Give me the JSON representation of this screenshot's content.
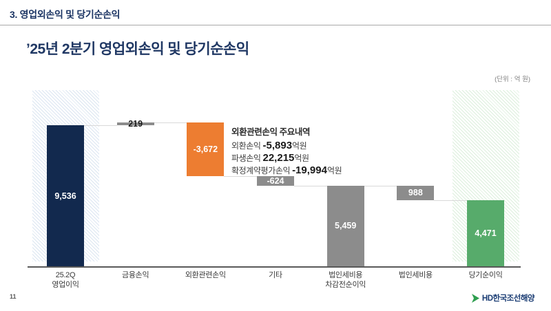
{
  "slide": {
    "header": "3. 영업외손익 및 당기순손익",
    "title": "’25년 2분기 영업외손익 및 당기순손익",
    "unit_label": "(단위 : 억 원)",
    "page_number": "11",
    "logo_text": "HD한국조선해양"
  },
  "annotation": {
    "title": "외환관련손익 주요내역",
    "items": [
      {
        "label": "외환손익",
        "value": "-5,893",
        "suffix": "억원"
      },
      {
        "label": "파생손익",
        "value": "22,215",
        "suffix": "억원"
      },
      {
        "label": "확정계약평가손익",
        "value": "-19,994",
        "suffix": "억원"
      }
    ]
  },
  "chart_data": {
    "type": "bar",
    "subtype": "waterfall",
    "title": "’25년 2분기 영업외손익 및 당기순손익",
    "unit": "억 원",
    "ylim": [
      0,
      10200
    ],
    "grid": false,
    "categories": [
      "25.2Q 영업이익",
      "금융손익",
      "외환관련손익",
      "기타",
      "법인세비용 차감전순이익",
      "법인세비용",
      "당기순이익"
    ],
    "values": [
      9536,
      219,
      -3672,
      -624,
      5459,
      -988,
      4471
    ],
    "columns": [
      {
        "name": "25.2Q-operating-profit",
        "label_lines": [
          "25.2Q",
          "영업이익"
        ],
        "kind": "total",
        "value": 9536,
        "display": "9,536",
        "color": "#12294e",
        "label_color": "#ffffff",
        "band": "blue"
      },
      {
        "name": "financial-income",
        "label_lines": [
          "금융손익"
        ],
        "kind": "delta",
        "value": 219,
        "display": "219",
        "color": "#8c8c8c",
        "label_color": "#1a1a1a",
        "band": null
      },
      {
        "name": "fx-related-income",
        "label_lines": [
          "외환관련손익"
        ],
        "kind": "delta",
        "value": -3672,
        "display": "-3,672",
        "color": "#ed7d31",
        "label_color": "#ffffff",
        "band": null
      },
      {
        "name": "other",
        "label_lines": [
          "기타"
        ],
        "kind": "delta",
        "value": -624,
        "display": "-624",
        "color": "#8c8c8c",
        "label_color": "#ffffff",
        "band": null
      },
      {
        "name": "pretax-income",
        "label_lines": [
          "법인세비용",
          "차감전순이익"
        ],
        "kind": "subtotal",
        "value": 5459,
        "display": "5,459",
        "color": "#8c8c8c",
        "label_color": "#ffffff",
        "band": null
      },
      {
        "name": "income-tax-expense",
        "label_lines": [
          "법인세비용"
        ],
        "kind": "delta",
        "value": -988,
        "display": "988",
        "color": "#8c8c8c",
        "label_color": "#ffffff",
        "band": null
      },
      {
        "name": "net-income",
        "label_lines": [
          "당기순이익"
        ],
        "kind": "total",
        "value": 4471,
        "display": "4,471",
        "color": "#57ab6b",
        "label_color": "#ffffff",
        "band": "green"
      }
    ],
    "connector_color": "#d9d9d9",
    "axis_color": "#595959"
  },
  "colors": {
    "title_navy": "#203864",
    "bar_navy": "#12294e",
    "bar_orange": "#ed7d31",
    "bar_gray": "#8c8c8c",
    "bar_green": "#57ab6b",
    "logo_green": "#2e9e4f"
  }
}
